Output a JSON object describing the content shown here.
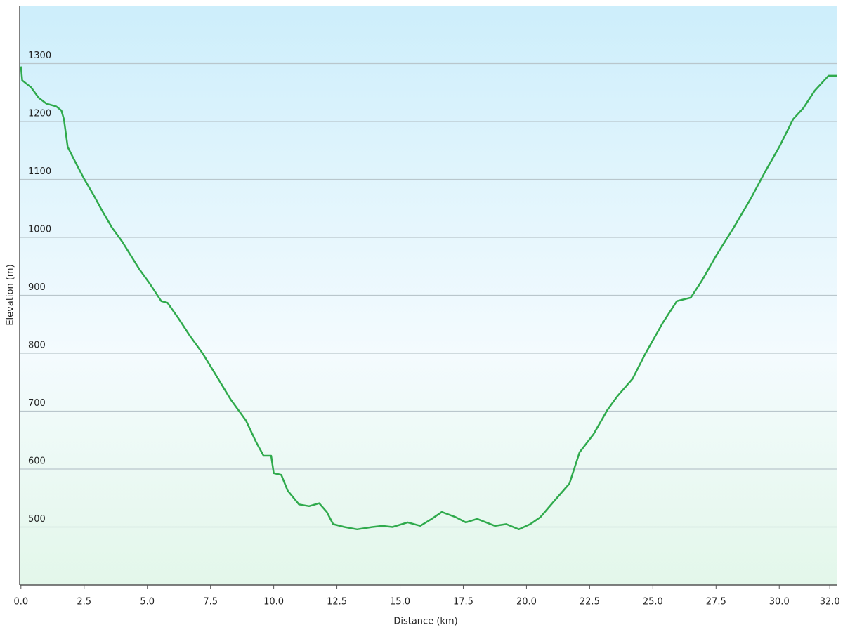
{
  "chart_data": {
    "type": "line",
    "x_label": "Distance  (km)",
    "y_label": "Elevation (m)",
    "xlim": [
      -0.05,
      32.3
    ],
    "ylim": [
      400,
      1400
    ],
    "xticks": [
      {
        "value": 0,
        "label": "0.0"
      },
      2.5,
      {
        "value": 5,
        "label": "5.0"
      },
      7.5,
      {
        "value": 10,
        "label": "10.0"
      },
      12.5,
      {
        "value": 15,
        "label": "15.0"
      },
      17.5,
      {
        "value": 20,
        "label": "20.0"
      },
      22.5,
      {
        "value": 25,
        "label": "25.0"
      },
      27.5,
      {
        "value": 30,
        "label": "30.0"
      },
      {
        "value": 32,
        "label": "32.0"
      }
    ],
    "yticks": [
      500,
      600,
      700,
      800,
      900,
      1000,
      1100,
      1200,
      1300
    ],
    "grid": true,
    "series": [
      {
        "name": "Elevation",
        "color": "#2faa4c",
        "x": [
          0,
          0.05,
          0.4,
          0.7,
          1.0,
          1.4,
          1.6,
          1.7,
          1.85,
          2.2,
          2.5,
          2.9,
          3.2,
          3.6,
          4.0,
          4.7,
          5.1,
          5.55,
          5.8,
          6.25,
          6.7,
          7.2,
          7.8,
          8.3,
          8.9,
          9.3,
          9.6,
          9.9,
          10.0,
          10.3,
          10.55,
          11.0,
          11.4,
          11.8,
          12.1,
          12.35,
          12.8,
          13.3,
          13.9,
          14.3,
          14.7,
          15.3,
          15.8,
          16.25,
          16.65,
          17.2,
          17.6,
          18.05,
          18.75,
          19.2,
          19.7,
          20.15,
          20.55,
          21.1,
          21.7,
          22.1,
          22.65,
          23.2,
          23.6,
          24.2,
          24.7,
          25.4,
          25.95,
          26.5,
          26.95,
          27.5,
          28.2,
          28.9,
          29.45,
          30.0,
          30.55,
          30.95,
          31.4,
          31.95,
          32.3
        ],
        "values": [
          1295,
          1271,
          1259,
          1241,
          1231,
          1226,
          1219,
          1204,
          1156,
          1126,
          1101,
          1071,
          1047,
          1017,
          993,
          944,
          920,
          890,
          887,
          859,
          829,
          799,
          756,
          720,
          684,
          647,
          623,
          623,
          593,
          590,
          563,
          539,
          536,
          541,
          526,
          505,
          500,
          496,
          500,
          502,
          500,
          508,
          502,
          514,
          526,
          517,
          508,
          514,
          502,
          505,
          496,
          505,
          517,
          545,
          575,
          629,
          660,
          702,
          726,
          756,
          799,
          853,
          890,
          896,
          926,
          968,
          1017,
          1069,
          1114,
          1156,
          1204,
          1223,
          1253,
          1279,
          1279
        ]
      }
    ]
  }
}
